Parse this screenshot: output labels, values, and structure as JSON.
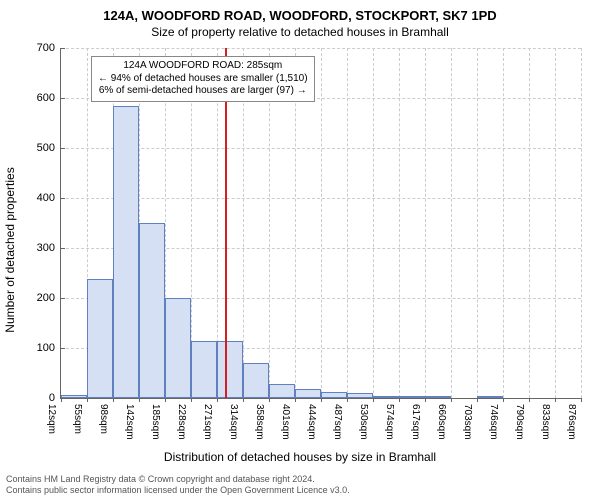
{
  "titles": {
    "main": "124A, WOODFORD ROAD, WOODFORD, STOCKPORT, SK7 1PD",
    "sub": "Size of property relative to detached houses in Bramhall"
  },
  "ylabel": "Number of detached properties",
  "xlabel": "Distribution of detached houses by size in Bramhall",
  "chart": {
    "type": "histogram",
    "ylim": [
      0,
      700
    ],
    "yticks": [
      0,
      100,
      200,
      300,
      400,
      500,
      600,
      700
    ],
    "xlim": [
      12,
      876
    ],
    "xticks": [
      "12sqm",
      "55sqm",
      "98sqm",
      "142sqm",
      "185sqm",
      "228sqm",
      "271sqm",
      "314sqm",
      "358sqm",
      "401sqm",
      "444sqm",
      "487sqm",
      "530sqm",
      "574sqm",
      "617sqm",
      "660sqm",
      "703sqm",
      "746sqm",
      "790sqm",
      "833sqm",
      "876sqm"
    ],
    "bar_fill": "#d6e0f5",
    "bar_border": "#6080c0",
    "grid_color": "#cccccc",
    "background_color": "#ffffff",
    "ref_line_color": "#d02020",
    "ref_value": 285,
    "bars": [
      {
        "x": 12,
        "count": 7
      },
      {
        "x": 55,
        "count": 238
      },
      {
        "x": 98,
        "count": 585
      },
      {
        "x": 142,
        "count": 350
      },
      {
        "x": 185,
        "count": 200
      },
      {
        "x": 228,
        "count": 115
      },
      {
        "x": 271,
        "count": 115
      },
      {
        "x": 314,
        "count": 70
      },
      {
        "x": 358,
        "count": 28
      },
      {
        "x": 401,
        "count": 18
      },
      {
        "x": 444,
        "count": 12
      },
      {
        "x": 487,
        "count": 10
      },
      {
        "x": 530,
        "count": 2
      },
      {
        "x": 574,
        "count": 1
      },
      {
        "x": 617,
        "count": 1
      },
      {
        "x": 660,
        "count": 0
      },
      {
        "x": 703,
        "count": 1
      },
      {
        "x": 746,
        "count": 0
      },
      {
        "x": 790,
        "count": 0
      },
      {
        "x": 833,
        "count": 0
      },
      {
        "x": 876,
        "count": 0
      }
    ]
  },
  "annotation": {
    "line1": "124A WOODFORD ROAD: 285sqm",
    "line2": "← 94% of detached houses are smaller (1,510)",
    "line3": "6% of semi-detached houses are larger (97) →"
  },
  "footer": {
    "line1": "Contains HM Land Registry data © Crown copyright and database right 2024.",
    "line2": "Contains public sector information licensed under the Open Government Licence v3.0."
  }
}
